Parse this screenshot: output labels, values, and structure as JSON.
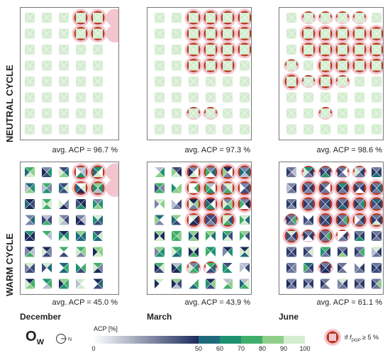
{
  "rows": [
    {
      "label": "NEUTRAL CYCLE"
    },
    {
      "label": "WARM CYCLE"
    }
  ],
  "columns": [
    {
      "label": "December"
    },
    {
      "label": "March"
    },
    {
      "label": "June"
    }
  ],
  "panels": [
    {
      "avg_text": "avg. ACP =  96.7 %",
      "cycle": "neutral",
      "month": "december"
    },
    {
      "avg_text": "avg. ACP =  97.3 %",
      "cycle": "neutral",
      "month": "march"
    },
    {
      "avg_text": "avg. ACP =  98.6 %",
      "cycle": "neutral",
      "month": "june"
    },
    {
      "avg_text": "avg. ACP =  45.0 %",
      "cycle": "warm",
      "month": "december"
    },
    {
      "avg_text": "avg. ACP =  43.9 %",
      "cycle": "warm",
      "month": "march"
    },
    {
      "avg_text": "avg. ACP =  61.1 %",
      "cycle": "warm",
      "month": "june"
    }
  ],
  "legend": {
    "symbol": "O",
    "symbol_sub": "W",
    "north_label": "N",
    "colorbar_title": "ACP [%]",
    "ticks": [
      "0",
      "50",
      "60",
      "70",
      "80",
      "90",
      "100"
    ],
    "dgp_note_prefix": "if ",
    "dgp_note_f": "f",
    "dgp_note_sub": "DGP",
    "dgp_note_suffix": " ≥ 5 %"
  },
  "colors": {
    "acp_0": "#ffffff",
    "acp_50": "#1c2a5a",
    "acp_60": "#1f6a7a",
    "acp_70": "#1e9170",
    "acp_80": "#3fae6a",
    "acp_90": "#8fcf8a",
    "acp_100": "#d4ecd0",
    "dgp_ring": "#f3c6cf",
    "dgp_marker": "#b83a22",
    "frame": "#777777"
  }
}
